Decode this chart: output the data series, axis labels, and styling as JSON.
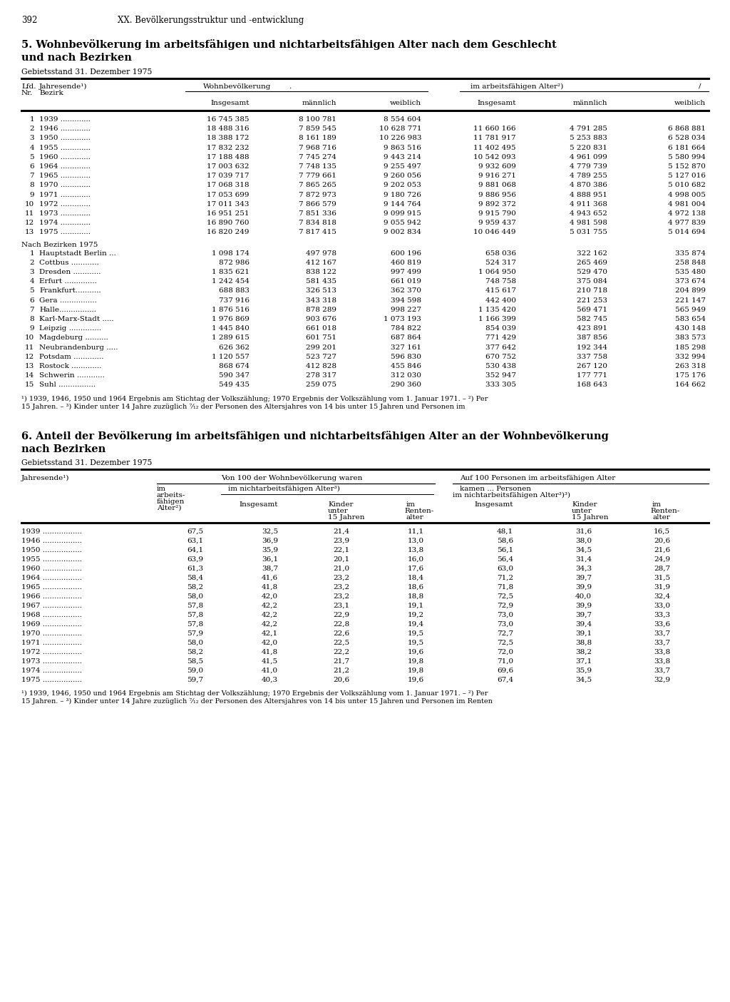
{
  "page_number": "392",
  "page_header": "XX. Bevölkerungsstruktur und -entwicklung",
  "section5_title_line1": "5. Wohnbevölkerung im arbeitsfähigen und nichtarbeitsfähigen Alter nach dem Geschlecht",
  "section5_title_line2": "und nach Bezirken",
  "section5_subtitle": "Gebietsstand 31. Dezember 1975",
  "table1_years": [
    [
      "1",
      "1939",
      "16 745 385",
      "8 100 781",
      "8 554 604",
      "",
      "",
      ""
    ],
    [
      "2",
      "1946",
      "18 488 316",
      "7 859 545",
      "10 628 771",
      "11 660 166",
      "4 791 285",
      "6 868 881"
    ],
    [
      "3",
      "1950",
      "18 388 172",
      "8 161 189",
      "10 226 983",
      "11 781 917",
      "5 253 883",
      "6 528 034"
    ],
    [
      "4",
      "1955",
      "17 832 232",
      "7 968 716",
      "9 863 516",
      "11 402 495",
      "5 220 831",
      "6 181 664"
    ],
    [
      "5",
      "1960",
      "17 188 488",
      "7 745 274",
      "9 443 214",
      "10 542 093",
      "4 961 099",
      "5 580 994"
    ],
    [
      "6",
      "1964",
      "17 003 632",
      "7 748 135",
      "9 255 497",
      "9 932 609",
      "4 779 739",
      "5 152 870"
    ],
    [
      "7",
      "1965",
      "17 039 717",
      "7 779 661",
      "9 260 056",
      "9 916 271",
      "4 789 255",
      "5 127 016"
    ],
    [
      "8",
      "1970",
      "17 068 318",
      "7 865 265",
      "9 202 053",
      "9 881 068",
      "4 870 386",
      "5 010 682"
    ],
    [
      "9",
      "1971",
      "17 053 699",
      "7 872 973",
      "9 180 726",
      "9 886 956",
      "4 888 951",
      "4 998 005"
    ],
    [
      "10",
      "1972",
      "17 011 343",
      "7 866 579",
      "9 144 764",
      "9 892 372",
      "4 911 368",
      "4 981 004"
    ],
    [
      "11",
      "1973",
      "16 951 251",
      "7 851 336",
      "9 099 915",
      "9 915 790",
      "4 943 652",
      "4 972 138"
    ],
    [
      "12",
      "1974",
      "16 890 760",
      "7 834 818",
      "9 055 942",
      "9 959 437",
      "4 981 598",
      "4 977 839"
    ],
    [
      "13",
      "1975",
      "16 820 249",
      "7 817 415",
      "9 002 834",
      "10 046 449",
      "5 031 755",
      "5 014 694"
    ]
  ],
  "table1_bezirke_header": "Nach Bezirken 1975",
  "table1_bezirke": [
    [
      "1",
      "Hauptstadt Berlin ...",
      "1 098 174",
      "497 978",
      "600 196",
      "658 036",
      "322 162",
      "335 874"
    ],
    [
      "2",
      "Cottbus ............",
      "872 986",
      "412 167",
      "460 819",
      "524 317",
      "265 469",
      "258 848"
    ],
    [
      "3",
      "Dresden ............",
      "1 835 621",
      "838 122",
      "997 499",
      "1 064 950",
      "529 470",
      "535 480"
    ],
    [
      "4",
      "Erfurt ..............",
      "1 242 454",
      "581 435",
      "661 019",
      "748 758",
      "375 084",
      "373 674"
    ],
    [
      "5",
      "Frankfurt...........",
      "688 883",
      "326 513",
      "362 370",
      "415 617",
      "210 718",
      "204 899"
    ],
    [
      "6",
      "Gera ................",
      "737 916",
      "343 318",
      "394 598",
      "442 400",
      "221 253",
      "221 147"
    ],
    [
      "7",
      "Halle................",
      "1 876 516",
      "878 289",
      "998 227",
      "1 135 420",
      "569 471",
      "565 949"
    ],
    [
      "8",
      "Karl-Marx-Stadt .....",
      "1 976 869",
      "903 676",
      "1 073 193",
      "1 166 399",
      "582 745",
      "583 654"
    ],
    [
      "9",
      "Leipzig ..............",
      "1 445 840",
      "661 018",
      "784 822",
      "854 039",
      "423 891",
      "430 148"
    ],
    [
      "10",
      "Magdeburg ..........",
      "1 289 615",
      "601 751",
      "687 864",
      "771 429",
      "387 856",
      "383 573"
    ],
    [
      "11",
      "Neubrandenburg .....",
      "626 362",
      "299 201",
      "327 161",
      "377 642",
      "192 344",
      "185 298"
    ],
    [
      "12",
      "Potsdam .............",
      "1 120 557",
      "523 727",
      "596 830",
      "670 752",
      "337 758",
      "332 994"
    ],
    [
      "13",
      "Rostock .............",
      "868 674",
      "412 828",
      "455 846",
      "530 438",
      "267 120",
      "263 318"
    ],
    [
      "14",
      "Schwerin ............",
      "590 347",
      "278 317",
      "312 030",
      "352 947",
      "177 771",
      "175 176"
    ],
    [
      "15",
      "Suhl ................",
      "549 435",
      "259 075",
      "290 360",
      "333 305",
      "168 643",
      "164 662"
    ]
  ],
  "footnote1_line1": "¹) 1939, 1946, 1950 und 1964 Ergebnis am Stichtag der Volkszählung; 1970 Ergebnis der Volkszählung vom 1. Januar 1971. – ²) Per",
  "footnote1_line2": "15 Jahren. – ³) Kinder unter 14 Jahre zuzüglich ⁷⁄₁₂ der Personen des Altersjahres von 14 bis unter 15 Jahren und Personen im",
  "section6_title_line1": "6. Anteil der Bevölkerung im arbeitsfähigen und nichtarbeitsfähigen Alter an der Wohnbevölkerung",
  "section6_title_line2": "nach Bezirken",
  "section6_subtitle": "Gebietsstand 31. Dezember 1975",
  "table2_data": [
    [
      "1939",
      "67,5",
      "32,5",
      "21,4",
      "11,1",
      "48,1",
      "31,6",
      "16,5"
    ],
    [
      "1946",
      "63,1",
      "36,9",
      "23,9",
      "13,0",
      "58,6",
      "38,0",
      "20,6"
    ],
    [
      "1950",
      "64,1",
      "35,9",
      "22,1",
      "13,8",
      "56,1",
      "34,5",
      "21,6"
    ],
    [
      "1955",
      "63,9",
      "36,1",
      "20,1",
      "16,0",
      "56,4",
      "31,4",
      "24,9"
    ],
    [
      "1960",
      "61,3",
      "38,7",
      "21,0",
      "17,6",
      "63,0",
      "34,3",
      "28,7"
    ],
    [
      "1964",
      "58,4",
      "41,6",
      "23,2",
      "18,4",
      "71,2",
      "39,7",
      "31,5"
    ],
    [
      "1965",
      "58,2",
      "41,8",
      "23,2",
      "18,6",
      "71,8",
      "39,9",
      "31,9"
    ],
    [
      "1966",
      "58,0",
      "42,0",
      "23,2",
      "18,8",
      "72,5",
      "40,0",
      "32,4"
    ],
    [
      "1967",
      "57,8",
      "42,2",
      "23,1",
      "19,1",
      "72,9",
      "39,9",
      "33,0"
    ],
    [
      "1968",
      "57,8",
      "42,2",
      "22,9",
      "19,2",
      "73,0",
      "39,7",
      "33,3"
    ],
    [
      "1969",
      "57,8",
      "42,2",
      "22,8",
      "19,4",
      "73,0",
      "39,4",
      "33,6"
    ],
    [
      "1970",
      "57,9",
      "42,1",
      "22,6",
      "19,5",
      "72,7",
      "39,1",
      "33,7"
    ],
    [
      "1971",
      "58,0",
      "42,0",
      "22,5",
      "19,5",
      "72,5",
      "38,8",
      "33,7"
    ],
    [
      "1972",
      "58,2",
      "41,8",
      "22,2",
      "19,6",
      "72,0",
      "38,2",
      "33,8"
    ],
    [
      "1973",
      "58,5",
      "41,5",
      "21,7",
      "19,8",
      "71,0",
      "37,1",
      "33,8"
    ],
    [
      "1974",
      "59,0",
      "41,0",
      "21,2",
      "19,8",
      "69,6",
      "35,9",
      "33,7"
    ],
    [
      "1975",
      "59,7",
      "40,3",
      "20,6",
      "19,6",
      "67,4",
      "34,5",
      "32,9"
    ]
  ],
  "footnote2_line1": "¹) 1939, 1946, 1950 und 1964 Ergebnis am Stichtag der Volkszählung; 1970 Ergebnis der Volkszählung vom 1. Januar 1971. – ²) Per",
  "footnote2_line2": "15 Jahren. – ³) Kinder unter 14 Jahre zuzüglich ⁷⁄₁₂ der Personen des Altersjahres von 14 bis unter 15 Jahren und Personen im Renten"
}
